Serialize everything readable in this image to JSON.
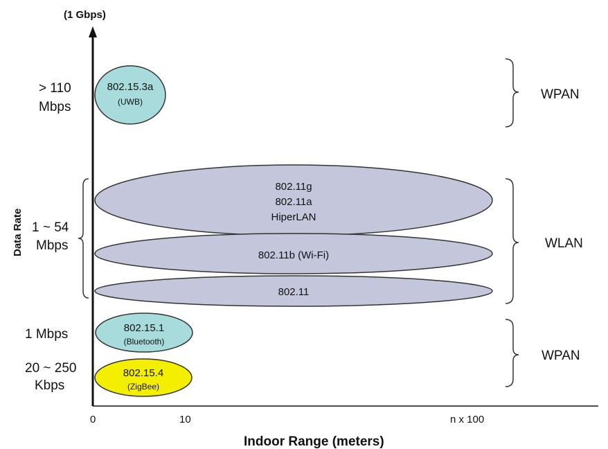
{
  "axes": {
    "y_top_label": "(1 Gbps)",
    "y_title": "Data Rate",
    "x_title": "Indoor Range (meters)",
    "x_ticks": [
      "0",
      "10",
      "n x 100"
    ]
  },
  "rate_labels": [
    {
      "line1": "> 110",
      "line2": "Mbps"
    },
    {
      "line1": "1 ~ 54",
      "line2": "Mbps"
    },
    {
      "line1": "1 Mbps",
      "line2": ""
    },
    {
      "line1": "20 ~ 250",
      "line2": "Kbps"
    }
  ],
  "standards": {
    "uwb": {
      "name": "802.15.3a",
      "sub": "(UWB)"
    },
    "wlan_top": {
      "line1": "802.11g",
      "line2": "802.11a",
      "line3": "HiperLAN"
    },
    "wifi": {
      "name": "802.11b (Wi-Fi)"
    },
    "base": {
      "name": "802.11"
    },
    "bluetooth": {
      "name": "802.15.1",
      "sub": "(Bluetooth)"
    },
    "zigbee": {
      "name": "802.15.4",
      "sub": "(ZigBee)"
    }
  },
  "groups": {
    "top": "WPAN",
    "middle": "WLAN",
    "bottom": "WPAN"
  },
  "colors": {
    "uwb_fill": "#a8dcdc",
    "wlan_fill": "#c4c6dc",
    "bluetooth_fill": "#a8dcdc",
    "zigbee_fill": "#f4ee00",
    "outline": "#333333"
  }
}
